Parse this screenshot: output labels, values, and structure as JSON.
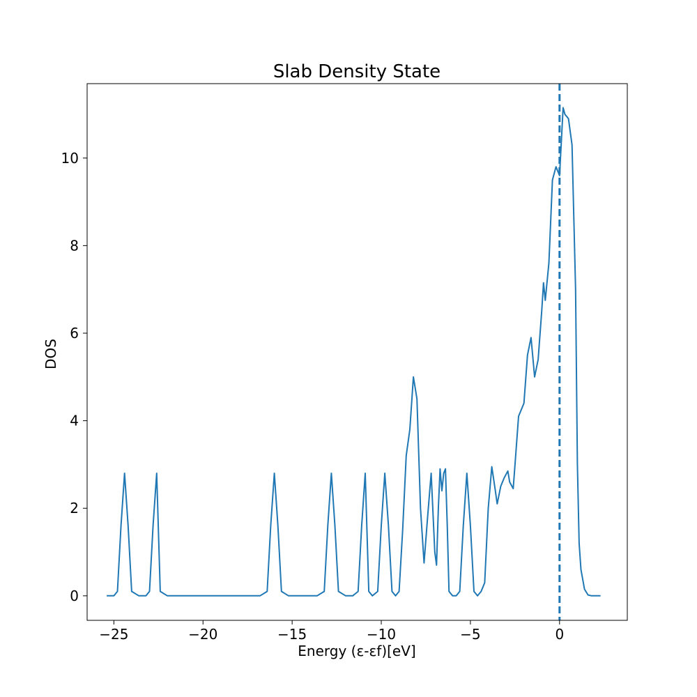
{
  "chart_data": {
    "type": "line",
    "title": "Slab Density State",
    "xlabel": "Energy (ε-εf)[eV]",
    "ylabel": "DOS",
    "xlim": [
      -26.5,
      3.8
    ],
    "ylim": [
      -0.56,
      11.7
    ],
    "xticks": [
      -25,
      -20,
      -15,
      -10,
      -5,
      0
    ],
    "xtick_labels": [
      "−25",
      "−20",
      "−15",
      "−10",
      "−5",
      "0"
    ],
    "yticks": [
      0,
      2,
      4,
      6,
      8,
      10
    ],
    "ytick_labels": [
      "0",
      "2",
      "4",
      "6",
      "8",
      "10"
    ],
    "grid": false,
    "line_color": "#1f77b4",
    "fermi_level": {
      "x": 0,
      "style": "dashed",
      "color": "#1f77b4"
    },
    "series": [
      {
        "x": [
          -25.4,
          -25.0,
          -24.8,
          -24.6,
          -24.4,
          -24.2,
          -24.0,
          -23.6,
          -23.2,
          -23.0,
          -22.8,
          -22.6,
          -22.4,
          -22.0,
          -20.0,
          -16.8,
          -16.4,
          -16.2,
          -16.0,
          -15.8,
          -15.6,
          -15.2,
          -13.6,
          -13.2,
          -13.0,
          -12.8,
          -12.6,
          -12.4,
          -12.0,
          -11.6,
          -11.3,
          -11.1,
          -10.9,
          -10.7,
          -10.5,
          -10.2,
          -10.0,
          -9.8,
          -9.6,
          -9.4,
          -9.2,
          -9.0,
          -8.8,
          -8.6,
          -8.4,
          -8.2,
          -8.0,
          -7.8,
          -7.6,
          -7.4,
          -7.2,
          -7.0,
          -6.9,
          -6.8,
          -6.7,
          -6.6,
          -6.5,
          -6.4,
          -6.3,
          -6.2,
          -6.0,
          -5.8,
          -5.6,
          -5.4,
          -5.2,
          -5.0,
          -4.8,
          -4.6,
          -4.4,
          -4.2,
          -4.0,
          -3.8,
          -3.6,
          -3.5,
          -3.3,
          -3.1,
          -2.9,
          -2.8,
          -2.6,
          -2.5,
          -2.3,
          -2.0,
          -1.8,
          -1.6,
          -1.4,
          -1.2,
          -1.0,
          -0.9,
          -0.8,
          -0.6,
          -0.4,
          -0.2,
          0.0,
          0.2,
          0.3,
          0.5,
          0.7,
          0.9,
          1.0,
          1.1,
          1.2,
          1.4,
          1.6,
          1.8,
          2.0,
          2.3
        ],
        "y": [
          0,
          0,
          0.1,
          1.6,
          2.8,
          1.6,
          0.1,
          0,
          0,
          0.1,
          1.6,
          2.8,
          0.1,
          0,
          0,
          0,
          0.1,
          1.6,
          2.8,
          1.6,
          0.1,
          0,
          0,
          0.1,
          1.6,
          2.8,
          1.6,
          0.1,
          0,
          0,
          0.1,
          1.6,
          2.8,
          0.1,
          0,
          0.1,
          1.6,
          2.8,
          1.6,
          0.1,
          0,
          0.1,
          1.5,
          3.2,
          3.8,
          5.0,
          4.5,
          2.0,
          0.75,
          1.8,
          2.8,
          1.0,
          0.7,
          2.0,
          2.9,
          2.4,
          2.8,
          2.9,
          1.6,
          0.1,
          0,
          0,
          0.1,
          1.6,
          2.8,
          1.6,
          0.1,
          0,
          0.1,
          0.3,
          2.0,
          2.95,
          2.4,
          2.1,
          2.5,
          2.7,
          2.85,
          2.6,
          2.45,
          3.0,
          4.1,
          4.4,
          5.5,
          5.9,
          5.0,
          5.4,
          6.5,
          7.15,
          6.75,
          7.6,
          9.5,
          9.8,
          9.6,
          11.15,
          11.0,
          10.9,
          10.3,
          7.0,
          3.0,
          1.2,
          0.6,
          0.15,
          0.02,
          0,
          0,
          0
        ]
      }
    ]
  }
}
